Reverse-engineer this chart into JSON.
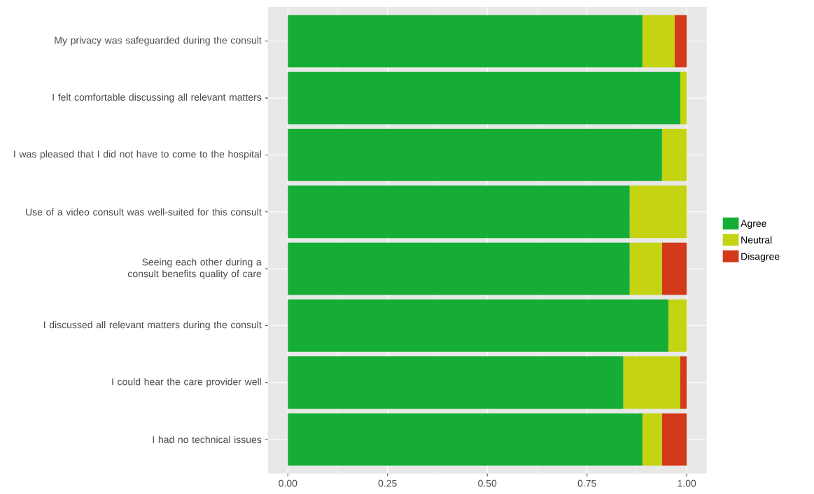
{
  "chart_data": {
    "type": "bar",
    "orientation": "horizontal",
    "stacked": true,
    "categories": [
      "My privacy was safeguarded during the consult",
      "I felt comfortable discussing all relevant matters",
      "I was pleased that I did not have to come to the hospital",
      "Use of a video consult was well-suited for this consult",
      "Seeing each other during a consult benefits quality of care",
      "I discussed all relevant matters during the consult",
      "I could hear the care provider well",
      "I had no technical issues"
    ],
    "series": [
      {
        "name": "Agree",
        "color": "#15ad36",
        "values": [
          0.889,
          0.984,
          0.938,
          0.857,
          0.857,
          0.954,
          0.841,
          0.889
        ]
      },
      {
        "name": "Neutral",
        "color": "#c4d312",
        "values": [
          0.081,
          0.016,
          0.062,
          0.143,
          0.081,
          0.046,
          0.143,
          0.049
        ]
      },
      {
        "name": "Disagree",
        "color": "#d33a19",
        "values": [
          0.03,
          0,
          0,
          0,
          0.062,
          0,
          0.016,
          0.062
        ]
      }
    ],
    "xlim": [
      -0.05,
      1.05
    ],
    "xticks": [
      {
        "value": 0,
        "label": "0.00"
      },
      {
        "value": 0.25,
        "label": "0.25"
      },
      {
        "value": 0.5,
        "label": "0.50"
      },
      {
        "value": 0.75,
        "label": "0.75"
      },
      {
        "value": 1,
        "label": "1.00"
      }
    ],
    "grid": true,
    "legend": "right"
  }
}
